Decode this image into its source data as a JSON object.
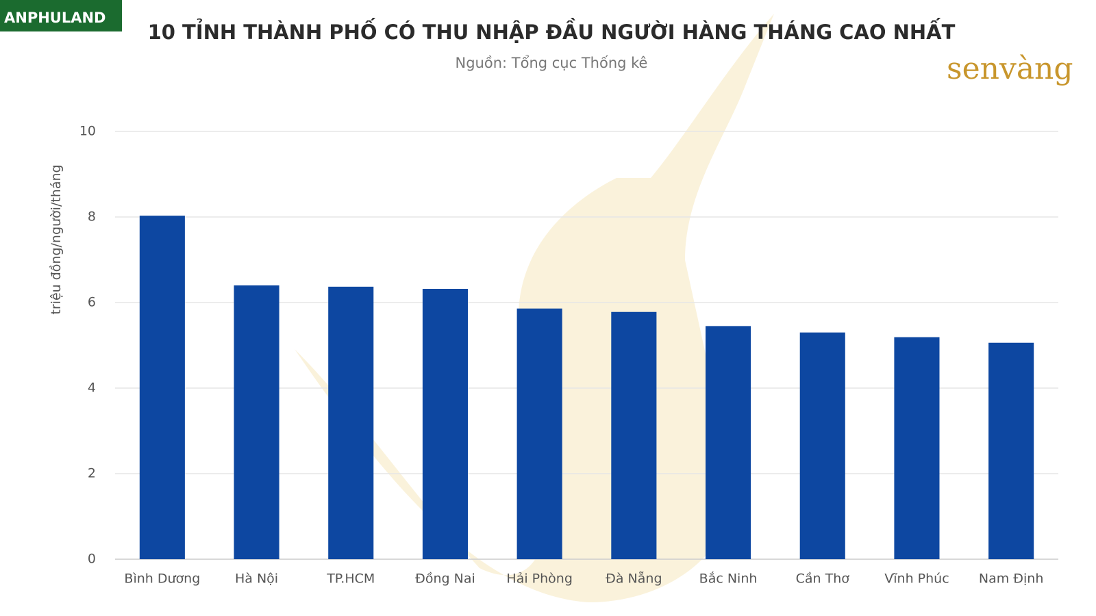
{
  "branding": {
    "left_logo": "ANPHULAND",
    "right_logo": "senvàng"
  },
  "chart_data": {
    "type": "bar",
    "title": "10 TỈNH THÀNH PHỐ CÓ THU NHẬP ĐẦU NGƯỜI HÀNG THÁNG CAO NHẤT",
    "subtitle": "Nguồn: Tổng cục Thống kê",
    "y_label": "triệu đồng/người/tháng",
    "categories": [
      "Bình Dương",
      "Hà Nội",
      "TP.HCM",
      "Đồng Nai",
      "Hải Phòng",
      "Đà Nẵng",
      "Bắc Ninh",
      "Cần Thơ",
      "Vĩnh Phúc",
      "Nam Định"
    ],
    "values": [
      8.03,
      6.4,
      6.37,
      6.32,
      5.86,
      5.78,
      5.45,
      5.3,
      5.19,
      5.06
    ],
    "color": "#0d47a1",
    "ylim": [
      0,
      10
    ],
    "yticks": [
      0,
      2,
      4,
      6,
      8,
      10
    ],
    "grid": true
  }
}
